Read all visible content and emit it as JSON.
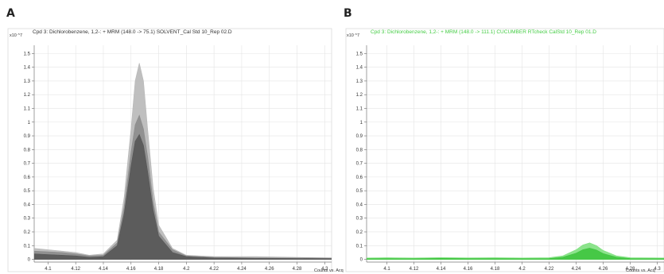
{
  "chart_data": [
    {
      "panel_label": "A",
      "type": "area",
      "title": "Cpd 3: Dichlorobenzene, 1,2-: + MRM (148.0 -> 75.1) SOLVENT_Cal Std 10_Rep 02.D",
      "title_color": "#333333",
      "y_scale": "x10 ^7",
      "xlabel": "Counts vs. Acq",
      "x_ticks": [
        "4.1",
        "4.12",
        "4.14",
        "4.16",
        "4.18",
        "4.2",
        "4.22",
        "4.24",
        "4.26",
        "4.28",
        "4.3"
      ],
      "y_ticks": [
        "0",
        "0.1",
        "0.2",
        "0.3",
        "0.4",
        "0.5",
        "0.6",
        "0.7",
        "0.8",
        "0.9",
        "1",
        "1.1",
        "1.2",
        "1.3",
        "1.4",
        "1.5"
      ],
      "xlim": [
        4.09,
        4.305
      ],
      "ylim": [
        -0.02,
        1.56
      ],
      "grid": true,
      "series": [
        {
          "color": "#b8b8b8",
          "x": [
            4.09,
            4.1,
            4.11,
            4.12,
            4.13,
            4.14,
            4.15,
            4.155,
            4.16,
            4.163,
            4.166,
            4.169,
            4.172,
            4.176,
            4.18,
            4.19,
            4.2,
            4.22,
            4.25,
            4.305
          ],
          "y": [
            0.08,
            0.07,
            0.06,
            0.05,
            0.03,
            0.04,
            0.14,
            0.45,
            0.95,
            1.3,
            1.43,
            1.3,
            0.95,
            0.52,
            0.25,
            0.08,
            0.03,
            0.02,
            0.02,
            0.01
          ]
        },
        {
          "color": "#8c8c8c",
          "x": [
            4.09,
            4.1,
            4.11,
            4.12,
            4.13,
            4.14,
            4.15,
            4.155,
            4.16,
            4.163,
            4.166,
            4.169,
            4.172,
            4.176,
            4.18,
            4.19,
            4.2,
            4.22,
            4.25,
            4.305
          ],
          "y": [
            0.06,
            0.055,
            0.05,
            0.04,
            0.025,
            0.03,
            0.12,
            0.38,
            0.78,
            0.98,
            1.05,
            0.95,
            0.75,
            0.42,
            0.2,
            0.07,
            0.025,
            0.015,
            0.01,
            0.01
          ]
        },
        {
          "color": "#575757",
          "x": [
            4.09,
            4.1,
            4.11,
            4.12,
            4.13,
            4.14,
            4.15,
            4.155,
            4.16,
            4.163,
            4.166,
            4.169,
            4.172,
            4.176,
            4.18,
            4.19,
            4.2,
            4.22,
            4.25,
            4.305
          ],
          "y": [
            0.04,
            0.035,
            0.03,
            0.025,
            0.015,
            0.02,
            0.1,
            0.33,
            0.68,
            0.86,
            0.91,
            0.83,
            0.64,
            0.36,
            0.17,
            0.05,
            0.02,
            0.01,
            0.008,
            0.005
          ]
        }
      ]
    },
    {
      "panel_label": "B",
      "type": "area",
      "title": "Cpd 3: Dichlorobenzene, 1,2-: + MRM (148.0 -> 111.1) CUCUMBER RTcheck CalStd 10_Rep 01.D",
      "title_color": "#44cc44",
      "y_scale": "x10 ^7",
      "xlabel": "Counts vs. Acq",
      "x_ticks": [
        "4.1",
        "4.12",
        "4.14",
        "4.16",
        "4.18",
        "4.2",
        "4.22",
        "4.24",
        "4.26",
        "4.28",
        "4.3"
      ],
      "y_ticks": [
        "0",
        "0.1",
        "0.2",
        "0.3",
        "0.4",
        "0.5",
        "0.6",
        "0.7",
        "0.8",
        "0.9",
        "1",
        "1.1",
        "1.2",
        "1.3",
        "1.4",
        "1.5"
      ],
      "xlim": [
        4.085,
        4.305
      ],
      "ylim": [
        -0.02,
        1.56
      ],
      "grid": true,
      "series": [
        {
          "color": "#7fe07f",
          "x": [
            4.085,
            4.1,
            4.12,
            4.14,
            4.16,
            4.18,
            4.2,
            4.22,
            4.23,
            4.24,
            4.245,
            4.25,
            4.255,
            4.26,
            4.27,
            4.28,
            4.305
          ],
          "y": [
            0.01,
            0.012,
            0.01,
            0.013,
            0.011,
            0.012,
            0.01,
            0.012,
            0.025,
            0.07,
            0.105,
            0.12,
            0.1,
            0.065,
            0.025,
            0.012,
            0.01
          ]
        },
        {
          "color": "#3ec43e",
          "x": [
            4.085,
            4.1,
            4.12,
            4.14,
            4.16,
            4.18,
            4.2,
            4.22,
            4.23,
            4.24,
            4.245,
            4.25,
            4.255,
            4.26,
            4.27,
            4.28,
            4.305
          ],
          "y": [
            0.005,
            0.006,
            0.005,
            0.007,
            0.006,
            0.006,
            0.005,
            0.006,
            0.015,
            0.045,
            0.07,
            0.082,
            0.068,
            0.042,
            0.015,
            0.006,
            0.005
          ]
        }
      ]
    }
  ]
}
